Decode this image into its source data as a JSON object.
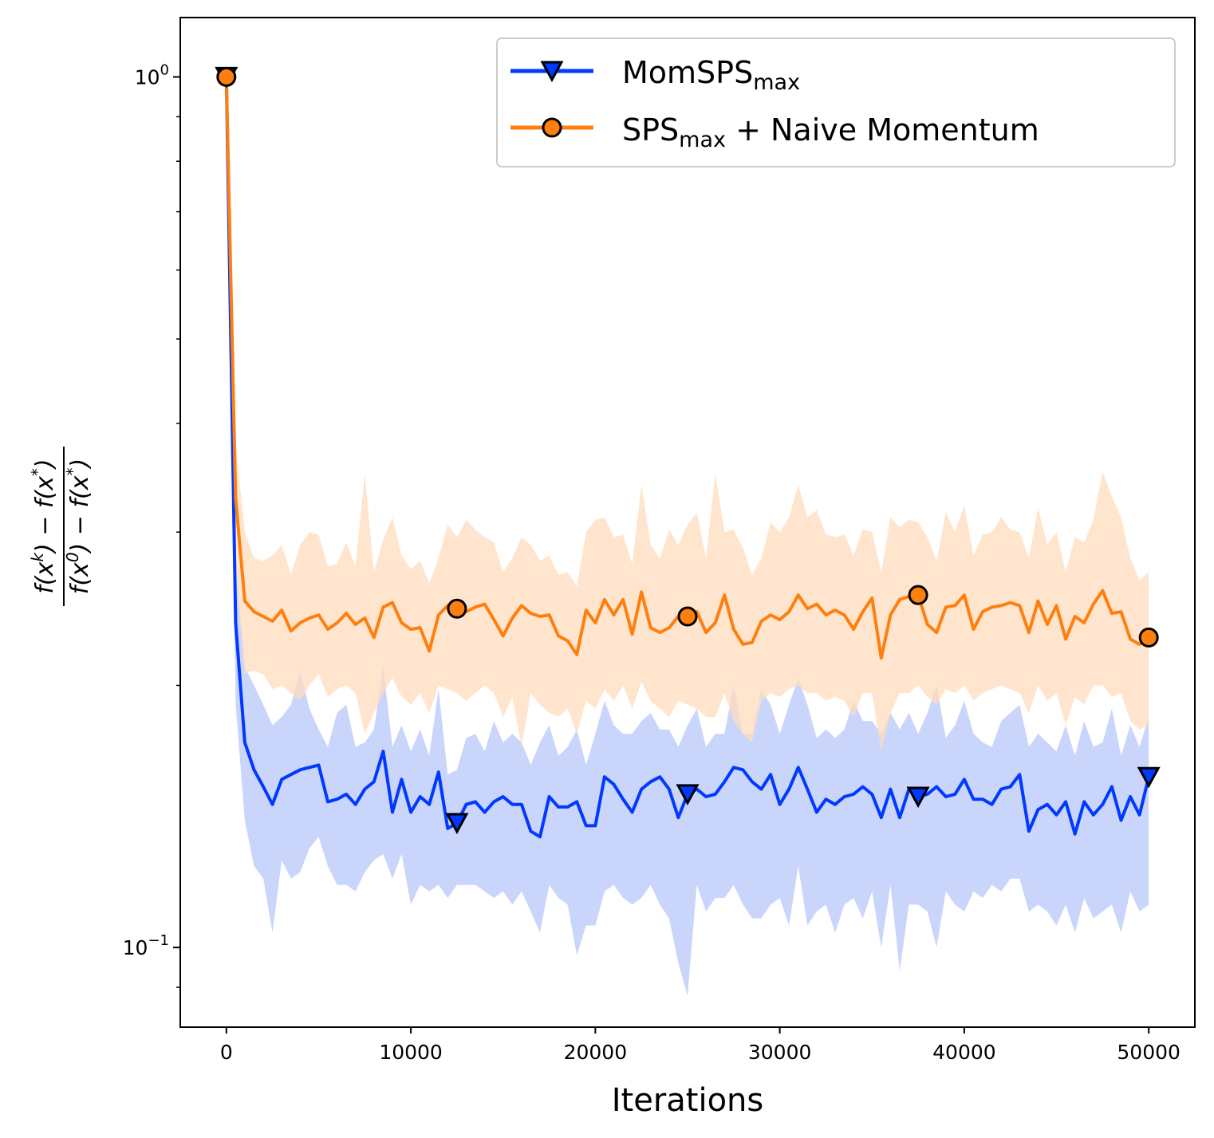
{
  "chart_data": {
    "type": "line",
    "xlabel": "Iterations",
    "ylabel": "f(x^k) − f(x^*) / f(x^0) − f(x^*)",
    "ylabel_parts": {
      "num_a": "f(x",
      "num_sup": "k",
      "num_b": ") − f(x",
      "num_sup2": "*",
      "num_c": ")",
      "den_a": "f(x",
      "den_sup": "0",
      "den_b": ") − f(x",
      "den_sup2": "*",
      "den_c": ")"
    },
    "yscale": "log",
    "xlim": [
      -2500,
      52500
    ],
    "ylim": [
      0.081,
      1.17
    ],
    "x_ticks": [
      0,
      10000,
      20000,
      30000,
      40000,
      50000
    ],
    "x_tick_labels": [
      "0",
      "10000",
      "20000",
      "30000",
      "40000",
      "50000"
    ],
    "y_ticks": [
      0.1,
      1
    ],
    "y_tick_labels": [
      {
        "base": "10",
        "exp": "−1"
      },
      {
        "base": "10",
        "exp": "0"
      }
    ],
    "y_minor_ticks": [
      0.09,
      0.2,
      0.3,
      0.4,
      0.5,
      0.6,
      0.7,
      0.8,
      0.9
    ],
    "legend_position": "upper right",
    "series": [
      {
        "name": "MomSPS_max",
        "legend_main": "MomSPS",
        "legend_sub": "max",
        "legend_suffix": "",
        "color": "#0039ff",
        "band_color": "#b8c7fa",
        "marker": "triangle-down",
        "marker_x": [
          0,
          12500,
          25000,
          37500,
          50000
        ],
        "x": [
          0,
          500,
          1000,
          1500,
          2000,
          2500,
          3000,
          3500,
          4000,
          4500,
          5000,
          5500,
          6000,
          6500,
          7000,
          7500,
          8000,
          8500,
          9000,
          9500,
          10000,
          10500,
          11000,
          11500,
          12000,
          12500,
          13000,
          13500,
          14000,
          14500,
          15000,
          15500,
          16000,
          16500,
          17000,
          17500,
          18000,
          18500,
          19000,
          19500,
          20000,
          20500,
          21000,
          21500,
          22000,
          22500,
          23000,
          23500,
          24000,
          24500,
          25000,
          25500,
          26000,
          26500,
          27000,
          27500,
          28000,
          28500,
          29000,
          29500,
          30000,
          30500,
          31000,
          31500,
          32000,
          32500,
          33000,
          33500,
          34000,
          34500,
          35000,
          35500,
          36000,
          36500,
          37000,
          37500,
          38000,
          38500,
          39000,
          39500,
          40000,
          40500,
          41000,
          41500,
          42000,
          42500,
          43000,
          43500,
          44000,
          44500,
          45000,
          45500,
          46000,
          46500,
          47000,
          47500,
          48000,
          48500,
          49000,
          49500,
          50000
        ],
        "values": [
          1.0,
          0.236,
          0.172,
          0.16,
          0.153,
          0.146,
          0.156,
          0.158,
          0.16,
          0.161,
          0.162,
          0.147,
          0.148,
          0.15,
          0.146,
          0.152,
          0.155,
          0.168,
          0.143,
          0.156,
          0.143,
          0.149,
          0.146,
          0.159,
          0.137,
          0.139,
          0.146,
          0.147,
          0.143,
          0.147,
          0.149,
          0.146,
          0.146,
          0.136,
          0.134,
          0.149,
          0.145,
          0.145,
          0.147,
          0.138,
          0.138,
          0.157,
          0.154,
          0.148,
          0.143,
          0.152,
          0.155,
          0.157,
          0.152,
          0.141,
          0.15,
          0.152,
          0.149,
          0.15,
          0.155,
          0.161,
          0.16,
          0.155,
          0.152,
          0.158,
          0.146,
          0.152,
          0.161,
          0.152,
          0.143,
          0.148,
          0.146,
          0.149,
          0.15,
          0.153,
          0.15,
          0.141,
          0.152,
          0.141,
          0.152,
          0.149,
          0.15,
          0.153,
          0.149,
          0.15,
          0.156,
          0.148,
          0.148,
          0.146,
          0.152,
          0.153,
          0.158,
          0.136,
          0.144,
          0.146,
          0.142,
          0.147,
          0.135,
          0.147,
          0.142,
          0.146,
          0.153,
          0.14,
          0.149,
          0.142,
          0.157
        ],
        "upper": [
          1.0,
          0.282,
          0.21,
          0.2,
          0.19,
          0.18,
          0.184,
          0.19,
          0.208,
          0.188,
          0.178,
          0.17,
          0.186,
          0.19,
          0.17,
          0.172,
          0.178,
          0.21,
          0.17,
          0.18,
          0.168,
          0.178,
          0.166,
          0.198,
          0.158,
          0.16,
          0.174,
          0.176,
          0.168,
          0.182,
          0.172,
          0.176,
          0.172,
          0.162,
          0.172,
          0.18,
          0.166,
          0.17,
          0.178,
          0.162,
          0.176,
          0.192,
          0.18,
          0.176,
          0.176,
          0.182,
          0.186,
          0.178,
          0.178,
          0.17,
          0.18,
          0.188,
          0.17,
          0.176,
          0.176,
          0.2,
          0.176,
          0.176,
          0.198,
          0.19,
          0.176,
          0.19,
          0.204,
          0.19,
          0.174,
          0.178,
          0.174,
          0.178,
          0.192,
          0.182,
          0.182,
          0.176,
          0.186,
          0.178,
          0.186,
          0.176,
          0.186,
          0.2,
          0.174,
          0.18,
          0.192,
          0.176,
          0.172,
          0.17,
          0.182,
          0.186,
          0.19,
          0.17,
          0.176,
          0.172,
          0.168,
          0.18,
          0.166,
          0.182,
          0.17,
          0.172,
          0.188,
          0.166,
          0.18,
          0.17,
          0.184
        ],
        "lower": [
          1.0,
          0.19,
          0.14,
          0.124,
          0.12,
          0.104,
          0.126,
          0.12,
          0.122,
          0.13,
          0.134,
          0.124,
          0.118,
          0.118,
          0.116,
          0.122,
          0.126,
          0.128,
          0.12,
          0.128,
          0.112,
          0.118,
          0.116,
          0.118,
          0.114,
          0.118,
          0.118,
          0.118,
          0.116,
          0.114,
          0.116,
          0.112,
          0.116,
          0.11,
          0.104,
          0.118,
          0.114,
          0.112,
          0.098,
          0.106,
          0.106,
          0.116,
          0.118,
          0.114,
          0.112,
          0.114,
          0.118,
          0.112,
          0.108,
          0.096,
          0.088,
          0.118,
          0.11,
          0.114,
          0.114,
          0.118,
          0.112,
          0.108,
          0.108,
          0.112,
          0.114,
          0.106,
          0.124,
          0.106,
          0.11,
          0.112,
          0.104,
          0.112,
          0.114,
          0.108,
          0.116,
          0.1,
          0.118,
          0.094,
          0.112,
          0.112,
          0.11,
          0.1,
          0.116,
          0.112,
          0.11,
          0.116,
          0.114,
          0.118,
          0.116,
          0.12,
          0.12,
          0.11,
          0.112,
          0.11,
          0.106,
          0.112,
          0.104,
          0.114,
          0.108,
          0.11,
          0.112,
          0.104,
          0.116,
          0.11,
          0.112
        ]
      },
      {
        "name": "SPS_max + Naive Momentum",
        "legend_main": "SPS",
        "legend_sub": "max",
        "legend_suffix": " + Naive Momentum",
        "color": "#ff7f0e",
        "band_color": "#ffdcbd",
        "marker": "circle",
        "marker_x": [
          0,
          12500,
          25000,
          37500,
          50000
        ],
        "x": [
          0,
          500,
          1000,
          1500,
          2000,
          2500,
          3000,
          3500,
          4000,
          4500,
          5000,
          5500,
          6000,
          6500,
          7000,
          7500,
          8000,
          8500,
          9000,
          9500,
          10000,
          10500,
          11000,
          11500,
          12000,
          12500,
          13000,
          13500,
          14000,
          14500,
          15000,
          15500,
          16000,
          16500,
          17000,
          17500,
          18000,
          18500,
          19000,
          19500,
          20000,
          20500,
          21000,
          21500,
          22000,
          22500,
          23000,
          23500,
          24000,
          24500,
          25000,
          25500,
          26000,
          26500,
          27000,
          27500,
          28000,
          28500,
          29000,
          29500,
          30000,
          30500,
          31000,
          31500,
          32000,
          32500,
          33000,
          33500,
          34000,
          34500,
          35000,
          35500,
          36000,
          36500,
          37000,
          37500,
          38000,
          38500,
          39000,
          39500,
          40000,
          40500,
          41000,
          41500,
          42000,
          42500,
          43000,
          43500,
          44000,
          44500,
          45000,
          45500,
          46000,
          46500,
          47000,
          47500,
          48000,
          48500,
          49000,
          49500,
          50000
        ],
        "values": [
          1.0,
          0.328,
          0.25,
          0.243,
          0.24,
          0.237,
          0.244,
          0.231,
          0.236,
          0.239,
          0.241,
          0.232,
          0.236,
          0.242,
          0.235,
          0.239,
          0.227,
          0.246,
          0.249,
          0.236,
          0.232,
          0.233,
          0.219,
          0.241,
          0.247,
          0.245,
          0.243,
          0.246,
          0.248,
          0.238,
          0.228,
          0.239,
          0.247,
          0.242,
          0.24,
          0.241,
          0.228,
          0.225,
          0.217,
          0.244,
          0.236,
          0.251,
          0.241,
          0.251,
          0.229,
          0.256,
          0.233,
          0.23,
          0.233,
          0.24,
          0.24,
          0.243,
          0.23,
          0.236,
          0.254,
          0.232,
          0.223,
          0.224,
          0.237,
          0.241,
          0.238,
          0.243,
          0.254,
          0.245,
          0.248,
          0.241,
          0.244,
          0.241,
          0.232,
          0.243,
          0.252,
          0.215,
          0.241,
          0.251,
          0.253,
          0.254,
          0.235,
          0.23,
          0.246,
          0.247,
          0.254,
          0.232,
          0.243,
          0.246,
          0.247,
          0.249,
          0.247,
          0.23,
          0.25,
          0.235,
          0.247,
          0.226,
          0.24,
          0.236,
          0.248,
          0.257,
          0.242,
          0.243,
          0.226,
          0.223,
          0.227
        ],
        "upper": [
          1.0,
          0.38,
          0.3,
          0.28,
          0.278,
          0.282,
          0.29,
          0.268,
          0.29,
          0.3,
          0.298,
          0.274,
          0.276,
          0.292,
          0.274,
          0.35,
          0.27,
          0.294,
          0.312,
          0.282,
          0.272,
          0.278,
          0.262,
          0.28,
          0.306,
          0.296,
          0.31,
          0.302,
          0.296,
          0.292,
          0.27,
          0.28,
          0.296,
          0.29,
          0.278,
          0.282,
          0.268,
          0.27,
          0.26,
          0.3,
          0.31,
          0.312,
          0.296,
          0.298,
          0.276,
          0.34,
          0.29,
          0.28,
          0.302,
          0.29,
          0.306,
          0.316,
          0.28,
          0.35,
          0.3,
          0.302,
          0.288,
          0.268,
          0.28,
          0.308,
          0.3,
          0.312,
          0.34,
          0.312,
          0.318,
          0.298,
          0.296,
          0.298,
          0.282,
          0.302,
          0.3,
          0.27,
          0.312,
          0.304,
          0.31,
          0.308,
          0.296,
          0.278,
          0.316,
          0.3,
          0.322,
          0.282,
          0.298,
          0.3,
          0.312,
          0.302,
          0.3,
          0.28,
          0.32,
          0.29,
          0.3,
          0.27,
          0.296,
          0.292,
          0.31,
          0.352,
          0.33,
          0.312,
          0.28,
          0.264,
          0.27
        ],
        "lower": [
          1.0,
          0.27,
          0.206,
          0.208,
          0.206,
          0.198,
          0.2,
          0.196,
          0.192,
          0.2,
          0.206,
          0.194,
          0.198,
          0.2,
          0.196,
          0.176,
          0.186,
          0.196,
          0.204,
          0.194,
          0.19,
          0.196,
          0.186,
          0.2,
          0.198,
          0.196,
          0.192,
          0.196,
          0.2,
          0.196,
          0.184,
          0.194,
          0.17,
          0.196,
          0.19,
          0.186,
          0.184,
          0.188,
          0.176,
          0.192,
          0.188,
          0.198,
          0.192,
          0.2,
          0.188,
          0.202,
          0.192,
          0.188,
          0.184,
          0.192,
          0.19,
          0.188,
          0.184,
          0.184,
          0.196,
          0.182,
          0.176,
          0.172,
          0.192,
          0.196,
          0.194,
          0.198,
          0.2,
          0.196,
          0.196,
          0.192,
          0.194,
          0.192,
          0.184,
          0.196,
          0.196,
          0.168,
          0.186,
          0.196,
          0.196,
          0.2,
          0.194,
          0.19,
          0.198,
          0.196,
          0.2,
          0.192,
          0.196,
          0.198,
          0.2,
          0.198,
          0.196,
          0.186,
          0.2,
          0.192,
          0.196,
          0.18,
          0.194,
          0.19,
          0.2,
          0.2,
          0.194,
          0.196,
          0.182,
          0.178,
          0.18
        ]
      }
    ]
  }
}
